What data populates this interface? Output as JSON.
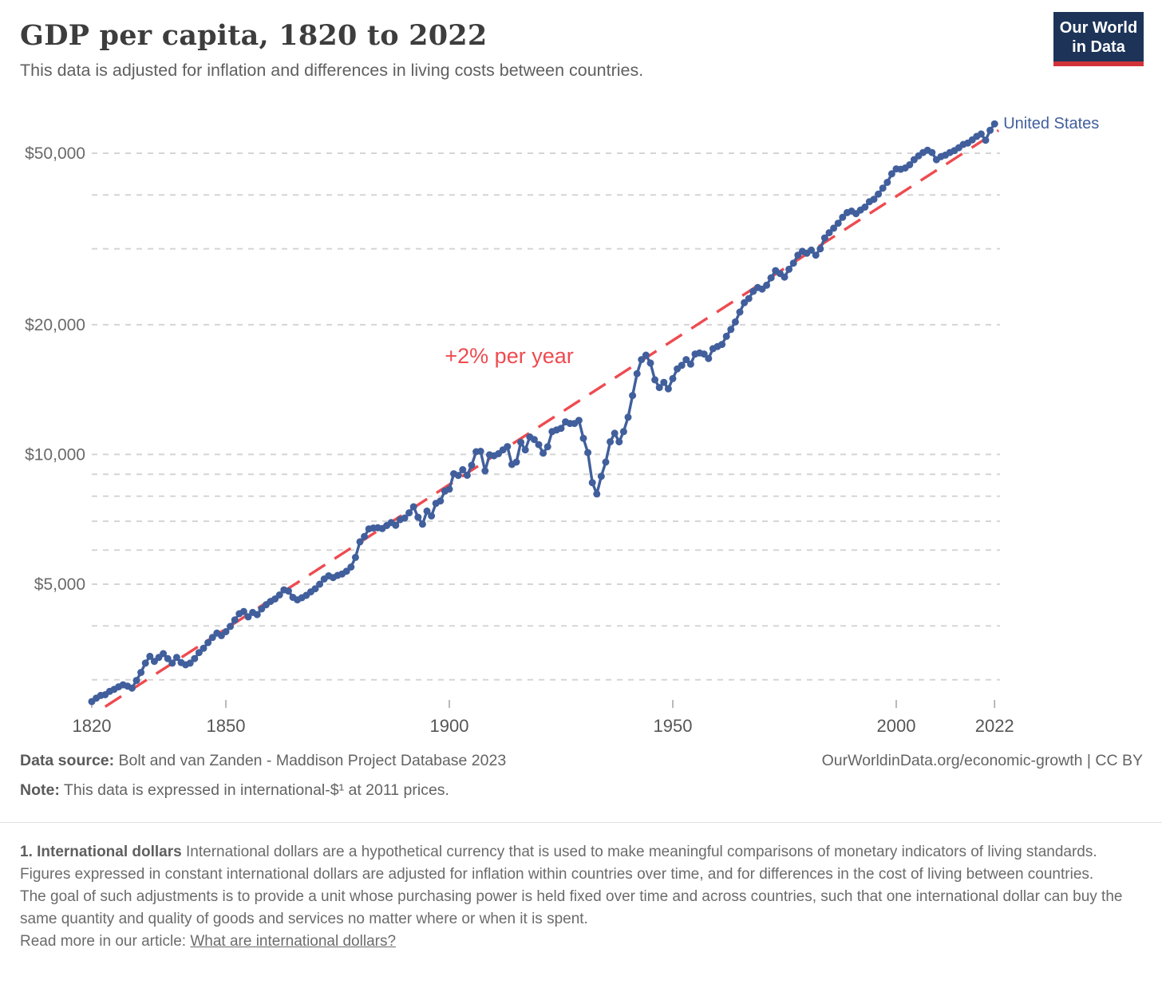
{
  "header": {
    "title": "GDP per capita, 1820 to 2022",
    "subtitle": "This data is adjusted for inflation and differences in living costs between countries.",
    "logo_line1": "Our World",
    "logo_line2": "in Data",
    "logo_bg": "#1d3458",
    "logo_accent": "#d13239"
  },
  "footer": {
    "source_label": "Data source:",
    "source_text": "Bolt and van Zanden - Maddison Project Database 2023",
    "credit": "OurWorldinData.org/economic-growth | CC BY",
    "note_label": "Note:",
    "note_text": "This data is expressed in international-$¹ at 2011 prices."
  },
  "footnote": {
    "heading": "1. International dollars",
    "p1": "International dollars are a hypothetical currency that is used to make meaningful comparisons of monetary indicators of living standards.",
    "p2": "Figures expressed in constant international dollars are adjusted for inflation within countries over time, and for differences in the cost of living between countries.",
    "p3": "The goal of such adjustments is to provide a unit whose purchasing power is held fixed over time and across countries, such that one international dollar can buy the same quantity and quality of goods and services no matter where or when it is spent.",
    "read_more_prefix": "Read more in our article: ",
    "read_more_link": "What are international dollars?"
  },
  "chart_data": {
    "type": "line",
    "title": "GDP per capita, 1820 to 2022",
    "y_scale": "log",
    "grid": true,
    "colors": {
      "series": "#415f9c",
      "trend": "#ee4b50",
      "gridline": "#d5d5d5"
    },
    "x_axis": {
      "min": 1820,
      "max": 2022,
      "ticks": [
        {
          "year": 1820,
          "label": "1820"
        },
        {
          "year": 1850,
          "label": "1850"
        },
        {
          "year": 1900,
          "label": "1900"
        },
        {
          "year": 1950,
          "label": "1950"
        },
        {
          "year": 2000,
          "label": "2000"
        },
        {
          "year": 2022,
          "label": "2022"
        }
      ]
    },
    "y_axis": {
      "min": 2600,
      "max": 60000,
      "ticks": [
        {
          "value": 50000,
          "label": "$50,000"
        },
        {
          "value": 20000,
          "label": "$20,000"
        },
        {
          "value": 10000,
          "label": "$10,000"
        },
        {
          "value": 5000,
          "label": "$5,000"
        }
      ],
      "gridlines": [
        3000,
        4000,
        5000,
        6000,
        7000,
        8000,
        9000,
        10000,
        20000,
        30000,
        40000,
        50000
      ]
    },
    "series": [
      {
        "name": "United States",
        "color": "#415f9c",
        "start_year": 1820,
        "values": [
          2670,
          2720,
          2760,
          2770,
          2820,
          2850,
          2890,
          2920,
          2900,
          2870,
          2990,
          3120,
          3280,
          3400,
          3310,
          3380,
          3450,
          3360,
          3280,
          3380,
          3290,
          3250,
          3280,
          3360,
          3470,
          3550,
          3660,
          3760,
          3850,
          3800,
          3880,
          3990,
          4130,
          4270,
          4320,
          4200,
          4300,
          4250,
          4380,
          4480,
          4560,
          4620,
          4720,
          4850,
          4820,
          4660,
          4600,
          4650,
          4710,
          4800,
          4880,
          5000,
          5140,
          5230,
          5180,
          5240,
          5280,
          5360,
          5480,
          5770,
          6270,
          6450,
          6720,
          6750,
          6760,
          6730,
          6840,
          6950,
          6850,
          7060,
          7120,
          7320,
          7560,
          7150,
          6890,
          7390,
          7200,
          7700,
          7800,
          8220,
          8310,
          9020,
          8940,
          9220,
          8950,
          9440,
          10150,
          10170,
          9160,
          9980,
          9930,
          10040,
          10250,
          10430,
          9480,
          9600,
          10670,
          10250,
          10980,
          10830,
          10540,
          10070,
          10420,
          11300,
          11400,
          11500,
          11900,
          11800,
          11800,
          12000,
          10900,
          10100,
          8600,
          8100,
          8900,
          9600,
          10700,
          11200,
          10700,
          11300,
          12200,
          13700,
          15400,
          16600,
          17000,
          16300,
          14900,
          14300,
          14700,
          14200,
          15000,
          15800,
          16100,
          16600,
          16200,
          17100,
          17200,
          17100,
          16700,
          17600,
          17800,
          18000,
          18800,
          19500,
          20300,
          21400,
          22500,
          23000,
          23900,
          24400,
          24200,
          24700,
          25700,
          26700,
          26300,
          25800,
          26900,
          27800,
          29000,
          29600,
          29300,
          29800,
          29000,
          30000,
          31800,
          32700,
          33500,
          34400,
          35500,
          36400,
          36700,
          36200,
          36900,
          37500,
          38600,
          39100,
          40200,
          41500,
          42800,
          44800,
          46000,
          45900,
          46200,
          47000,
          48300,
          49300,
          50200,
          50800,
          50200,
          48300,
          49100,
          49500,
          50200,
          50700,
          51500,
          52400,
          52800,
          53700,
          54700,
          55400,
          53600,
          56500,
          58500
        ]
      }
    ],
    "trend": {
      "label": "+2% per year",
      "color": "#ee4b50",
      "start": {
        "year": 1823,
        "value": 2600
      },
      "end": {
        "year": 2022.9,
        "value": 56500
      },
      "label_anchor": {
        "year": 1899,
        "value": 16300
      }
    }
  }
}
